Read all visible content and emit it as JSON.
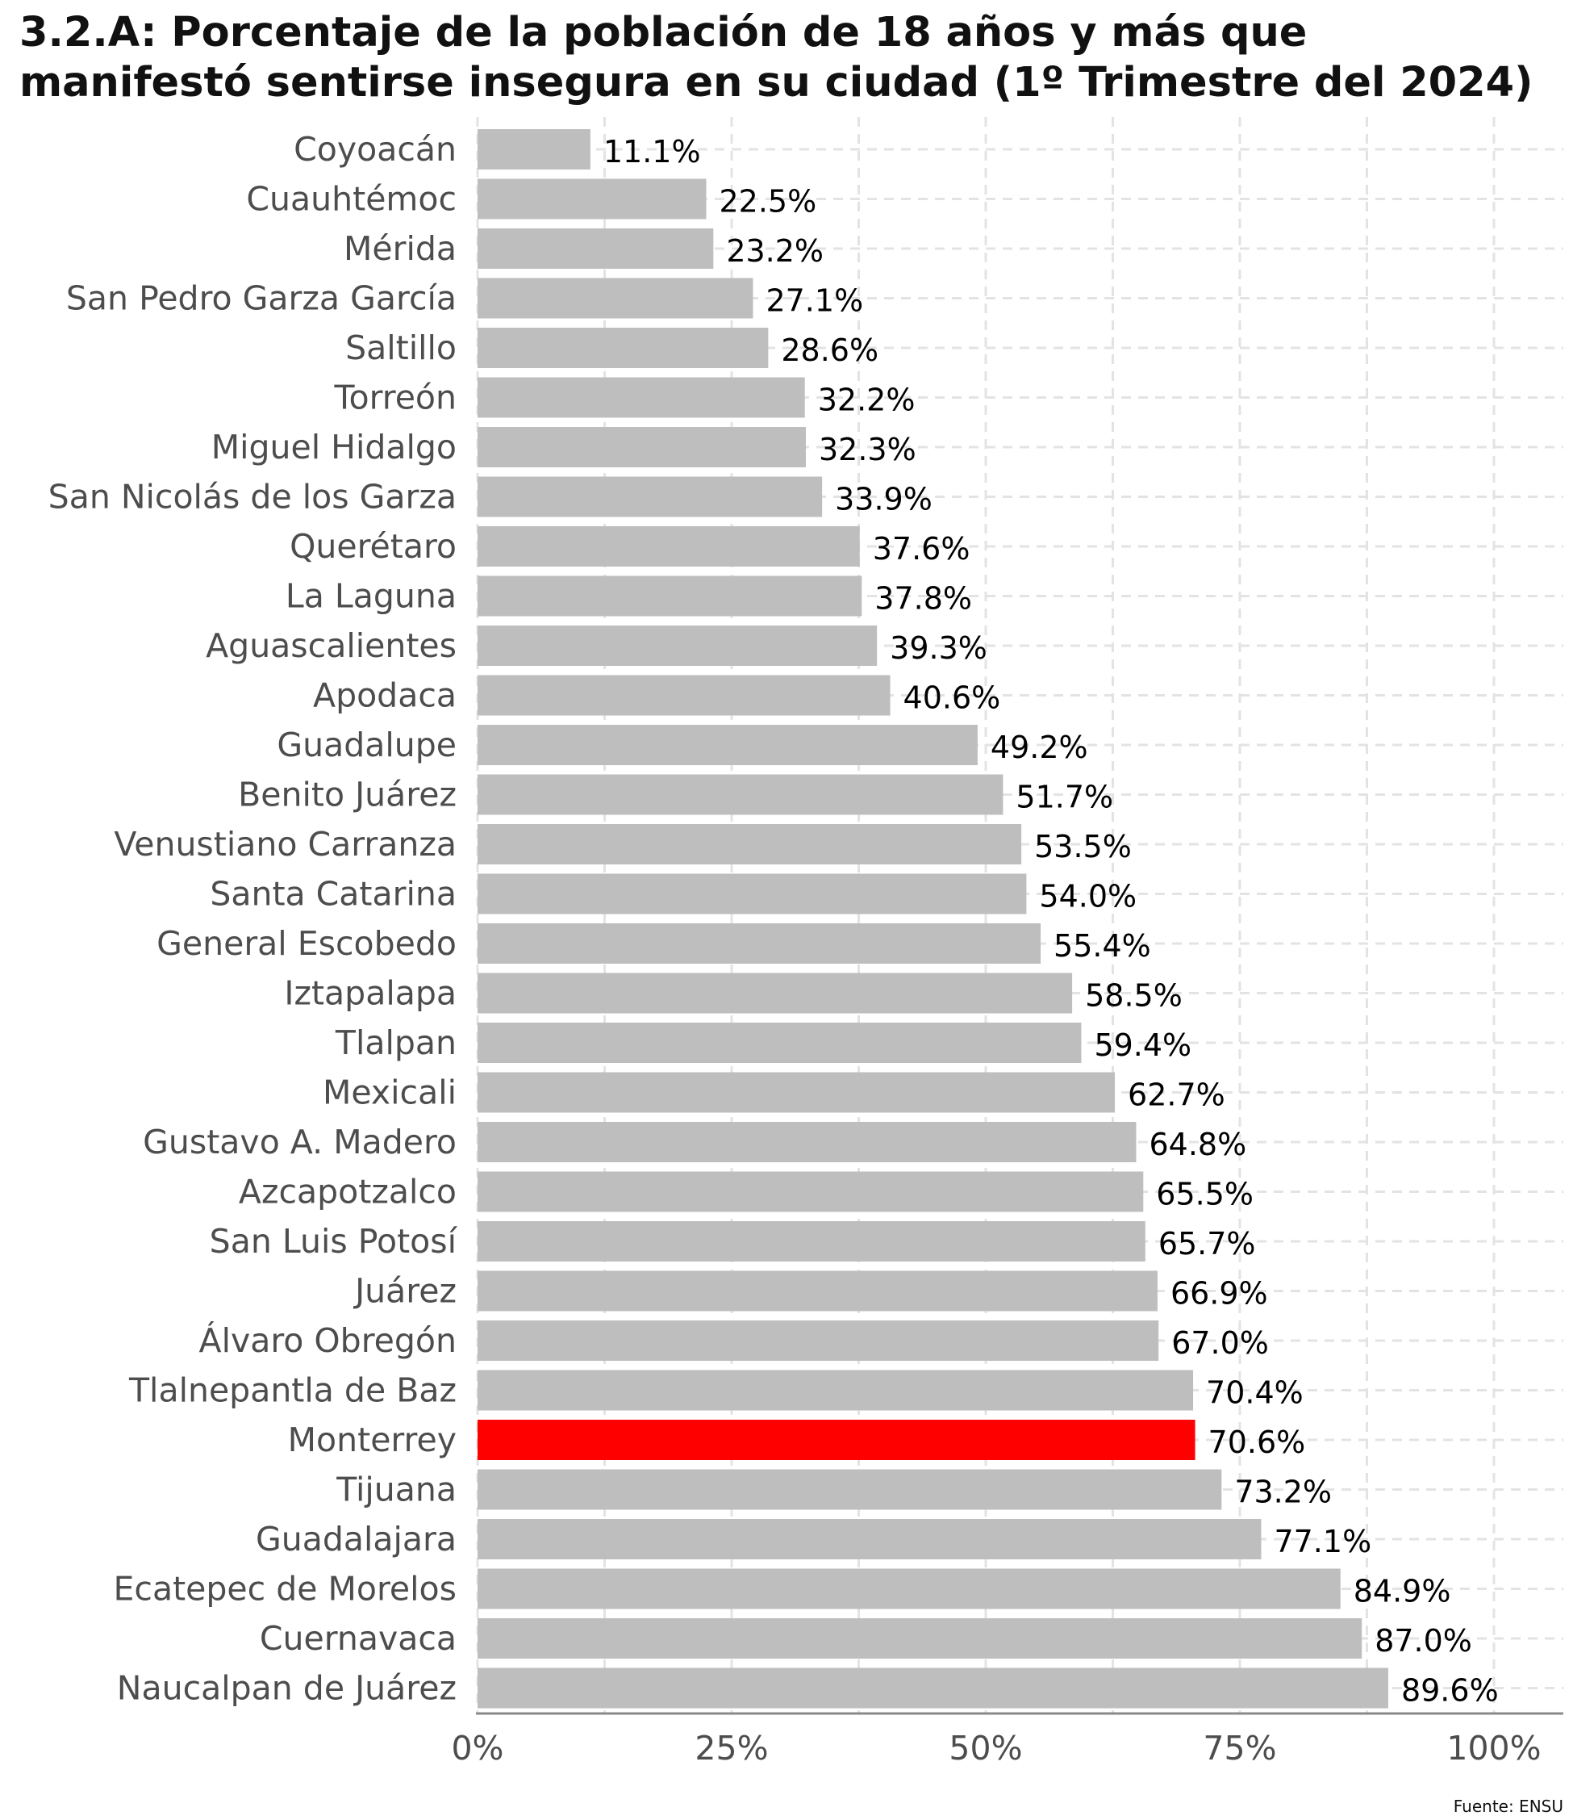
{
  "chart_data": {
    "type": "bar",
    "orientation": "horizontal",
    "title": "3.2.A: Porcentaje de la población de 18 años y más que manifestó sentirse insegura en su ciudad (1º Trimestre del 2024)",
    "xlabel": "",
    "ylabel": "",
    "xlim": [
      0,
      100
    ],
    "x_ticks": [
      "0%",
      "25%",
      "50%",
      "75%",
      "100%"
    ],
    "x_tick_values": [
      0,
      25,
      50,
      75,
      100
    ],
    "grid": true,
    "legend": "none",
    "bar_color": "#bebebe",
    "highlight_color": "#ff0000",
    "highlight_category": "Monterrey",
    "categories": [
      "Coyoacán",
      "Cuauhtémoc",
      "Mérida",
      "San Pedro Garza García",
      "Saltillo",
      "Torreón",
      "Miguel Hidalgo",
      "San Nicolás de los Garza",
      "Querétaro",
      "La Laguna",
      "Aguascalientes",
      "Apodaca",
      "Guadalupe",
      "Benito Juárez",
      "Venustiano Carranza",
      "Santa Catarina",
      "General Escobedo",
      "Iztapalapa",
      "Tlalpan",
      "Mexicali",
      "Gustavo A. Madero",
      "Azcapotzalco",
      "San Luis Potosí",
      "Juárez",
      "Álvaro Obregón",
      "Tlalnepantla de Baz",
      "Monterrey",
      "Tijuana",
      "Guadalajara",
      "Ecatepec de Morelos",
      "Cuernavaca",
      "Naucalpan de Juárez"
    ],
    "values": [
      11.1,
      22.5,
      23.2,
      27.1,
      28.6,
      32.2,
      32.3,
      33.9,
      37.6,
      37.8,
      39.3,
      40.6,
      49.2,
      51.7,
      53.5,
      54.0,
      55.4,
      58.5,
      59.4,
      62.7,
      64.8,
      65.5,
      65.7,
      66.9,
      67.0,
      70.4,
      70.6,
      73.2,
      77.1,
      84.9,
      87.0,
      89.6
    ],
    "data_labels": [
      "11.1%",
      "22.5%",
      "23.2%",
      "27.1%",
      "28.6%",
      "32.2%",
      "32.3%",
      "33.9%",
      "37.6%",
      "37.8%",
      "39.3%",
      "40.6%",
      "49.2%",
      "51.7%",
      "53.5%",
      "54.0%",
      "55.4%",
      "58.5%",
      "59.4%",
      "62.7%",
      "64.8%",
      "65.5%",
      "65.7%",
      "66.9%",
      "67.0%",
      "70.4%",
      "70.6%",
      "73.2%",
      "77.1%",
      "84.9%",
      "87.0%",
      "89.6%"
    ]
  },
  "source": "Fuente: ENSU"
}
